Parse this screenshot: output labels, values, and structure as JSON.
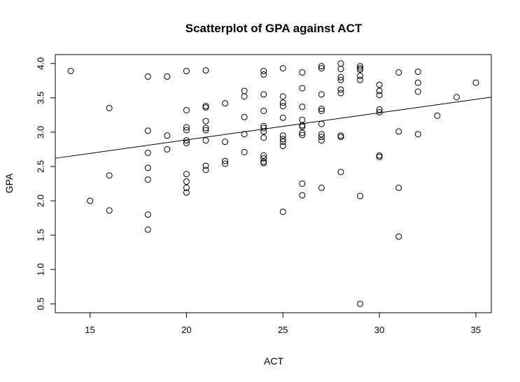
{
  "chart_data": {
    "type": "scatter",
    "title": "Scatterplot of GPA against ACT",
    "xlabel": "ACT",
    "ylabel": "GPA",
    "xlim": [
      13.2,
      35.8
    ],
    "ylim": [
      0.37,
      4.13
    ],
    "x_ticks": [
      15,
      20,
      25,
      30,
      35
    ],
    "y_ticks": [
      0.5,
      1.0,
      1.5,
      2.0,
      2.5,
      3.0,
      3.5,
      4.0
    ],
    "x_tick_labels": [
      "15",
      "20",
      "25",
      "30",
      "35"
    ],
    "y_tick_labels": [
      "0.5",
      "1.0",
      "1.5",
      "2.0",
      "2.5",
      "3.0",
      "3.5",
      "4.0"
    ],
    "grid": false,
    "regression_line": {
      "x": [
        13.2,
        35.8
      ],
      "y": [
        2.62,
        3.51
      ]
    },
    "points": [
      {
        "x": 14,
        "y": 3.89
      },
      {
        "x": 15,
        "y": 2.0
      },
      {
        "x": 16,
        "y": 3.35
      },
      {
        "x": 16,
        "y": 2.37
      },
      {
        "x": 16,
        "y": 1.86
      },
      {
        "x": 18,
        "y": 3.81
      },
      {
        "x": 18,
        "y": 3.02
      },
      {
        "x": 18,
        "y": 2.7
      },
      {
        "x": 18,
        "y": 2.48
      },
      {
        "x": 18,
        "y": 2.31
      },
      {
        "x": 18,
        "y": 1.8
      },
      {
        "x": 18,
        "y": 1.58
      },
      {
        "x": 19,
        "y": 3.81
      },
      {
        "x": 19,
        "y": 2.95
      },
      {
        "x": 19,
        "y": 2.75
      },
      {
        "x": 20,
        "y": 3.89
      },
      {
        "x": 20,
        "y": 3.32
      },
      {
        "x": 20,
        "y": 3.07
      },
      {
        "x": 20,
        "y": 3.03
      },
      {
        "x": 20,
        "y": 2.88
      },
      {
        "x": 20,
        "y": 2.84
      },
      {
        "x": 20,
        "y": 2.39
      },
      {
        "x": 20,
        "y": 2.28
      },
      {
        "x": 20,
        "y": 2.19
      },
      {
        "x": 20,
        "y": 2.12
      },
      {
        "x": 21,
        "y": 3.9
      },
      {
        "x": 21,
        "y": 3.38
      },
      {
        "x": 21,
        "y": 3.36
      },
      {
        "x": 21,
        "y": 3.16
      },
      {
        "x": 21,
        "y": 3.06
      },
      {
        "x": 21,
        "y": 3.03
      },
      {
        "x": 21,
        "y": 2.88
      },
      {
        "x": 21,
        "y": 2.51
      },
      {
        "x": 21,
        "y": 2.45
      },
      {
        "x": 22,
        "y": 3.42
      },
      {
        "x": 22,
        "y": 2.86
      },
      {
        "x": 22,
        "y": 2.58
      },
      {
        "x": 22,
        "y": 2.54
      },
      {
        "x": 23,
        "y": 3.6
      },
      {
        "x": 23,
        "y": 3.52
      },
      {
        "x": 23,
        "y": 3.22
      },
      {
        "x": 23,
        "y": 2.97
      },
      {
        "x": 23,
        "y": 2.71
      },
      {
        "x": 24,
        "y": 3.89
      },
      {
        "x": 24,
        "y": 3.84
      },
      {
        "x": 24,
        "y": 3.55
      },
      {
        "x": 24,
        "y": 3.31
      },
      {
        "x": 24,
        "y": 3.09
      },
      {
        "x": 24,
        "y": 3.06
      },
      {
        "x": 24,
        "y": 3.01
      },
      {
        "x": 24,
        "y": 2.92
      },
      {
        "x": 24,
        "y": 2.66
      },
      {
        "x": 24,
        "y": 2.62
      },
      {
        "x": 24,
        "y": 2.57
      },
      {
        "x": 24,
        "y": 2.55
      },
      {
        "x": 25,
        "y": 3.93
      },
      {
        "x": 25,
        "y": 3.52
      },
      {
        "x": 25,
        "y": 3.43
      },
      {
        "x": 25,
        "y": 3.38
      },
      {
        "x": 25,
        "y": 3.21
      },
      {
        "x": 25,
        "y": 2.95
      },
      {
        "x": 25,
        "y": 2.9
      },
      {
        "x": 25,
        "y": 2.86
      },
      {
        "x": 25,
        "y": 2.8
      },
      {
        "x": 25,
        "y": 1.84
      },
      {
        "x": 26,
        "y": 3.87
      },
      {
        "x": 26,
        "y": 3.64
      },
      {
        "x": 26,
        "y": 3.37
      },
      {
        "x": 26,
        "y": 3.18
      },
      {
        "x": 26,
        "y": 3.1
      },
      {
        "x": 26,
        "y": 3.08
      },
      {
        "x": 26,
        "y": 2.99
      },
      {
        "x": 26,
        "y": 2.96
      },
      {
        "x": 26,
        "y": 2.25
      },
      {
        "x": 26,
        "y": 2.08
      },
      {
        "x": 27,
        "y": 3.96
      },
      {
        "x": 27,
        "y": 3.93
      },
      {
        "x": 27,
        "y": 3.55
      },
      {
        "x": 27,
        "y": 3.34
      },
      {
        "x": 27,
        "y": 3.31
      },
      {
        "x": 27,
        "y": 3.12
      },
      {
        "x": 27,
        "y": 2.97
      },
      {
        "x": 27,
        "y": 2.93
      },
      {
        "x": 27,
        "y": 2.88
      },
      {
        "x": 27,
        "y": 2.19
      },
      {
        "x": 28,
        "y": 4.0
      },
      {
        "x": 28,
        "y": 3.92
      },
      {
        "x": 28,
        "y": 3.8
      },
      {
        "x": 28,
        "y": 3.76
      },
      {
        "x": 28,
        "y": 3.62
      },
      {
        "x": 28,
        "y": 3.57
      },
      {
        "x": 28,
        "y": 2.95
      },
      {
        "x": 28,
        "y": 2.93
      },
      {
        "x": 28,
        "y": 2.42
      },
      {
        "x": 29,
        "y": 3.96
      },
      {
        "x": 29,
        "y": 3.93
      },
      {
        "x": 29,
        "y": 3.91
      },
      {
        "x": 29,
        "y": 3.82
      },
      {
        "x": 29,
        "y": 3.76
      },
      {
        "x": 29,
        "y": 2.07
      },
      {
        "x": 29,
        "y": 0.5
      },
      {
        "x": 30,
        "y": 3.69
      },
      {
        "x": 30,
        "y": 3.6
      },
      {
        "x": 30,
        "y": 3.54
      },
      {
        "x": 30,
        "y": 3.33
      },
      {
        "x": 30,
        "y": 3.29
      },
      {
        "x": 30,
        "y": 2.66
      },
      {
        "x": 30,
        "y": 2.64
      },
      {
        "x": 31,
        "y": 3.87
      },
      {
        "x": 31,
        "y": 3.01
      },
      {
        "x": 31,
        "y": 2.19
      },
      {
        "x": 31,
        "y": 1.48
      },
      {
        "x": 32,
        "y": 3.88
      },
      {
        "x": 32,
        "y": 3.72
      },
      {
        "x": 32,
        "y": 3.59
      },
      {
        "x": 32,
        "y": 2.97
      },
      {
        "x": 33,
        "y": 3.24
      },
      {
        "x": 34,
        "y": 3.51
      },
      {
        "x": 35,
        "y": 3.72
      }
    ]
  }
}
